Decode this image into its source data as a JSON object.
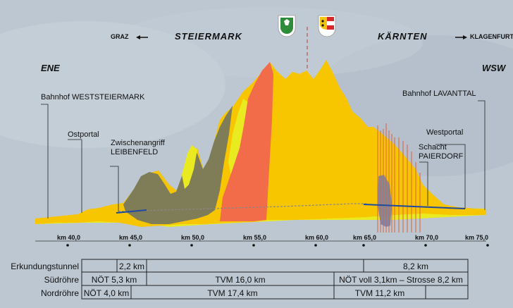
{
  "header": {
    "left_region": "STEIERMARK",
    "right_region": "KÄRNTEN",
    "left_direction": "GRAZ",
    "right_direction": "KLAGENFURT",
    "compass_left": "ENE",
    "compass_right": "WSW"
  },
  "sites": {
    "station_east": "Bahnhof WESTSTEIERMARK",
    "portal_east": "Ostportal",
    "intermediate_line1": "Zwischenangriff",
    "intermediate_line2": "LEIBENFELD",
    "station_west": "Bahnhof LAVANTTAL",
    "portal_west": "Westportal",
    "shaft_line1": "Schacht",
    "shaft_line2": "PAIERDORF"
  },
  "axis": {
    "ticks": [
      "km 40,0",
      "km 45,0",
      "km 50,0",
      "km 55,0",
      "km 60,0",
      "km 65,0",
      "km 70,0",
      "km 75,0"
    ]
  },
  "table": {
    "rows": [
      {
        "label": "Erkundungstunnel",
        "cells": [
          "",
          "2,2 km",
          "",
          "8,2 km"
        ]
      },
      {
        "label": "Südröhre",
        "cells": [
          "NÖT 5,3 km",
          "TVM 16,0 km",
          "NÖT voll 3,1km – Strosse 8,2 km"
        ]
      },
      {
        "label": "Nordröhre",
        "cells": [
          "NÖT 4,0 km",
          "TVM 17,4 km",
          "TVM 11,2 km",
          ""
        ]
      }
    ]
  },
  "colors": {
    "background": "#b8c4cf",
    "yellow": "#f7c600",
    "lime": "#e9ea1f",
    "olive": "#7f7c58",
    "coral": "#f26c4a",
    "blue": "#6a7fb6",
    "tunnel": "#1f4aa0"
  }
}
